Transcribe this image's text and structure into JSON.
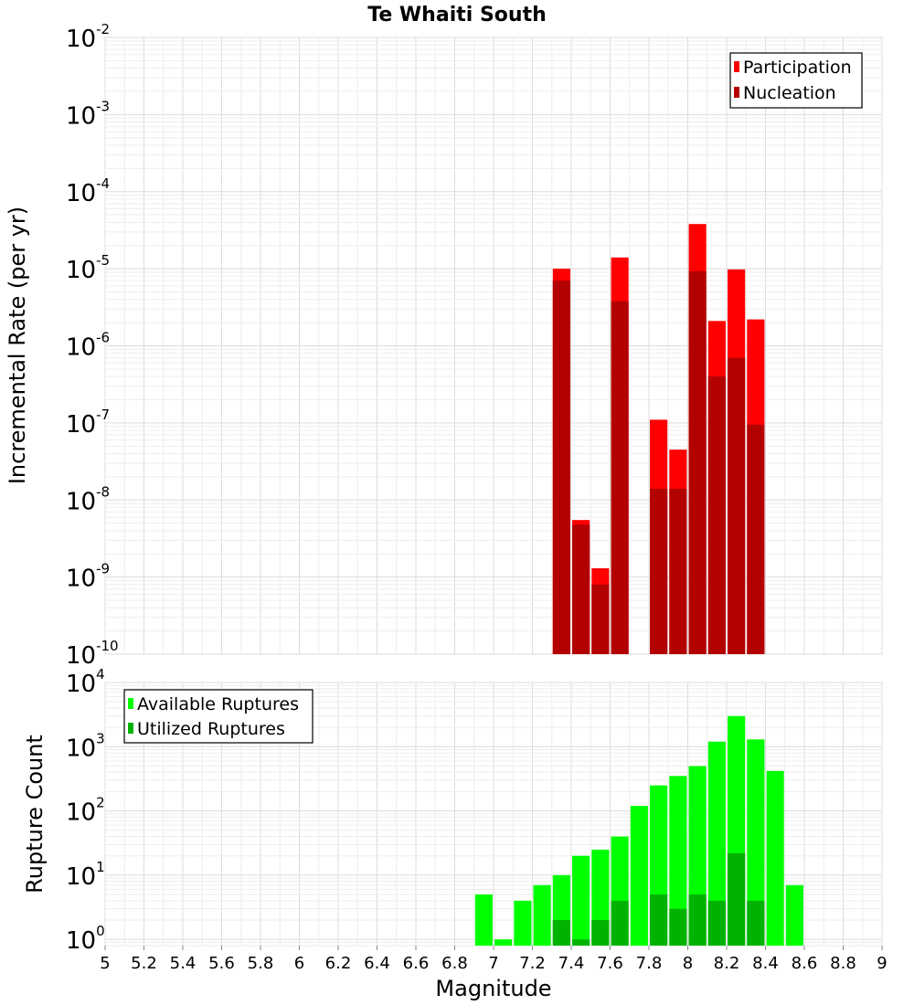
{
  "chart_data": [
    {
      "type": "bar",
      "title": "Te Whaiti South",
      "xlabel": "",
      "ylabel": "Incremental Rate (per yr)",
      "xlim": [
        5,
        9
      ],
      "ylim": [
        1e-10,
        0.01
      ],
      "yscale": "log",
      "y_tick_exponents": [
        "-10",
        "-9",
        "-8",
        "-7",
        "-6",
        "-5",
        "-4",
        "-3",
        "-2"
      ],
      "legend_position": "top-right",
      "grid": true,
      "colors": {
        "participation": "#ff0000",
        "nucleation": "#b30000"
      },
      "x": [
        7.35,
        7.45,
        7.55,
        7.65,
        7.85,
        7.95,
        8.05,
        8.15,
        8.25,
        8.35
      ],
      "series": [
        {
          "name": "Participation",
          "values": [
            1e-05,
            5.5e-09,
            1.3e-09,
            1.4e-05,
            1.1e-07,
            4.5e-08,
            3.8e-05,
            2.1e-06,
            9.8e-06,
            2.2e-06
          ]
        },
        {
          "name": "Nucleation",
          "values": [
            7e-06,
            4.8e-09,
            8e-10,
            3.8e-06,
            1.4e-08,
            1.4e-08,
            9.3e-06,
            4e-07,
            7e-07,
            9.5e-08
          ]
        }
      ]
    },
    {
      "type": "bar",
      "title": "",
      "xlabel": "Magnitude",
      "ylabel": "Rupture Count",
      "xlim": [
        5,
        9
      ],
      "ylim": [
        0.8,
        10000
      ],
      "yscale": "log",
      "y_tick_exponents": [
        "0",
        "1",
        "2",
        "3",
        "4"
      ],
      "x_ticks": [
        "5",
        "5.2",
        "5.4",
        "5.6",
        "5.8",
        "6",
        "6.2",
        "6.4",
        "6.6",
        "6.8",
        "7",
        "7.2",
        "7.4",
        "7.6",
        "7.8",
        "8",
        "8.2",
        "8.4",
        "8.6",
        "8.8",
        "9"
      ],
      "legend_position": "top-left",
      "grid": true,
      "colors": {
        "available": "#00ff00",
        "utilized": "#00b300"
      },
      "x": [
        6.95,
        7.05,
        7.15,
        7.25,
        7.35,
        7.45,
        7.55,
        7.65,
        7.75,
        7.85,
        7.95,
        8.05,
        8.15,
        8.25,
        8.35,
        8.45,
        8.55
      ],
      "series": [
        {
          "name": "Available Ruptures",
          "values": [
            5,
            1,
            4,
            7,
            10,
            20,
            25,
            40,
            120,
            250,
            350,
            500,
            1200,
            3000,
            1300,
            420,
            7
          ]
        },
        {
          "name": "Utilized Ruptures",
          "values": [
            0,
            0,
            0,
            0,
            2,
            1,
            2,
            4,
            0,
            5,
            3,
            5,
            4,
            22,
            4,
            0,
            0
          ]
        }
      ]
    }
  ]
}
